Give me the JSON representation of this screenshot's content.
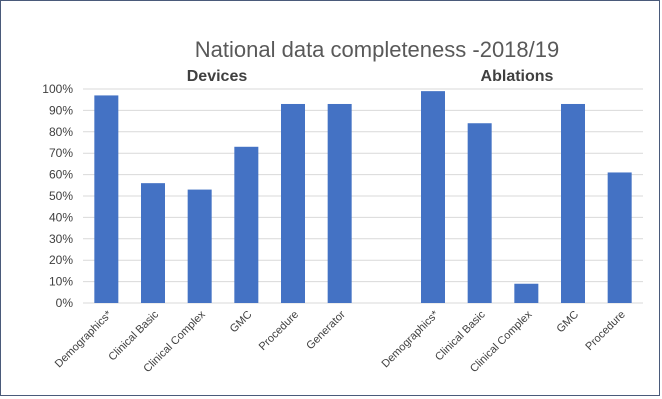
{
  "chart_data": {
    "type": "bar",
    "title": "National data completeness -2018/19",
    "groups": [
      {
        "name": "Devices",
        "categories": [
          "Demographics*",
          "Clinical Basic",
          "Clinical Complex",
          "GMC",
          "Procedure",
          "Generator"
        ],
        "values": [
          97,
          56,
          53,
          73,
          93,
          93
        ]
      },
      {
        "name": "Ablations",
        "categories": [
          "Demographics*",
          "Clinical Basic",
          "Clinical Complex",
          "GMC",
          "Procedure"
        ],
        "values": [
          99,
          84,
          9,
          93,
          61
        ]
      }
    ],
    "y_ticks": [
      "0%",
      "10%",
      "20%",
      "30%",
      "40%",
      "50%",
      "60%",
      "70%",
      "80%",
      "90%",
      "100%"
    ],
    "ylim": [
      0,
      100
    ],
    "grid": true,
    "bar_color": "#4472c4",
    "legend": "none"
  }
}
